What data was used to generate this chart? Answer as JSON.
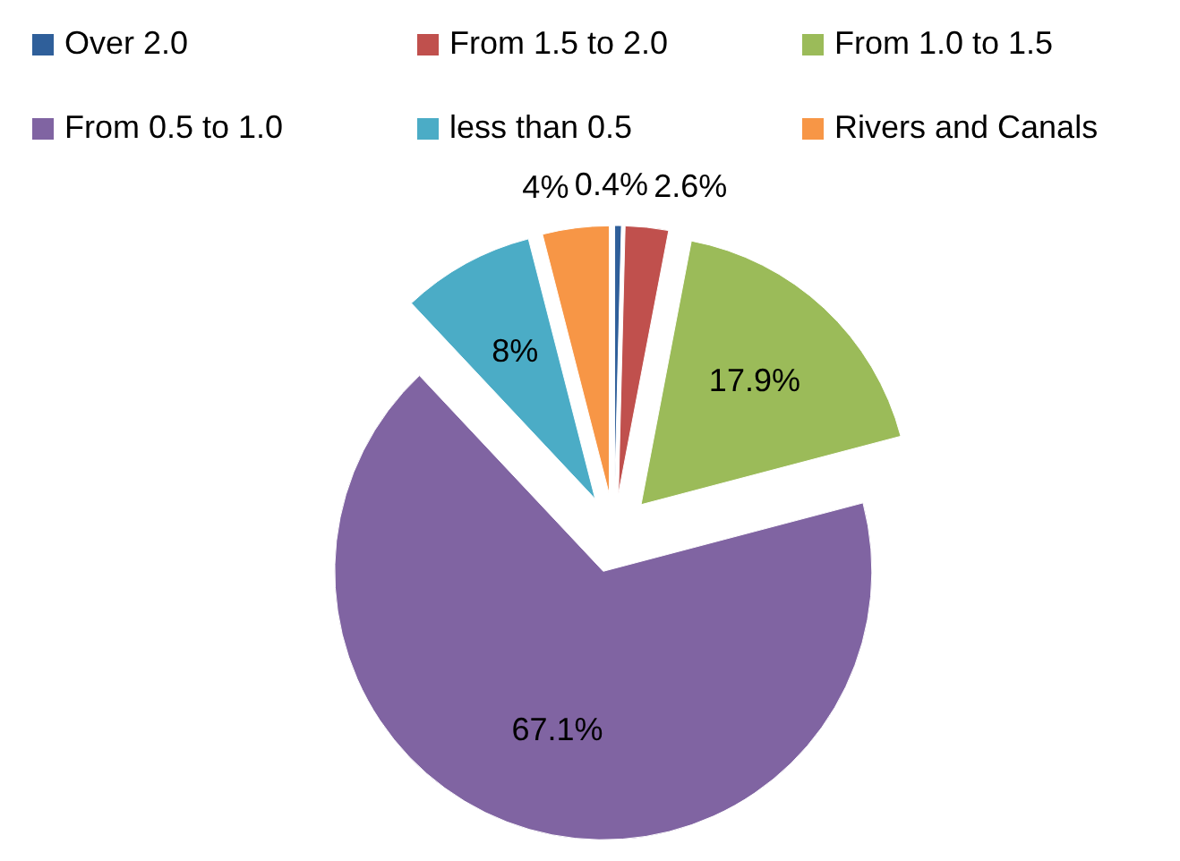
{
  "chart_data": {
    "type": "pie",
    "categories": [
      "Over 2.0",
      "From 1.5 to 2.0",
      "From 1.0 to 1.5",
      "From 0.5 to 1.0",
      "less than 0.5",
      "Rivers and Canals"
    ],
    "values": [
      0.4,
      2.6,
      17.9,
      67.1,
      8,
      4
    ],
    "value_labels": [
      "0.4%",
      "2.6%",
      "17.9%",
      "67.1%",
      "8%",
      "4%"
    ],
    "colors": [
      "#2f5f9a",
      "#c0504d",
      "#9bbb59",
      "#8064a2",
      "#4bacc6",
      "#f79646"
    ],
    "legend": "top"
  }
}
